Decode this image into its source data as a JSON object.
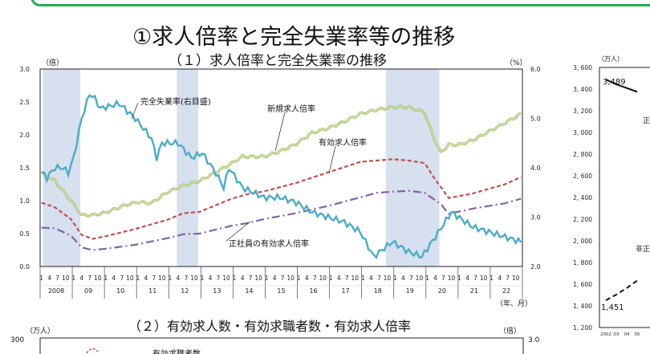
{
  "page_title": "①求人倍率と完全失業率等の推移",
  "chart_data": [
    {
      "type": "line",
      "title": "（１）求人倍率と完全失業率の推移",
      "left_unit": "（倍）",
      "right_unit": "（%）",
      "x_unit": "（年、月）",
      "ylim": [
        0,
        3.0
      ],
      "y_ticks": [
        "0.0",
        "0.5",
        "1.0",
        "1.5",
        "2.0",
        "2.5",
        "3.0"
      ],
      "y2lim": [
        2.0,
        6.0
      ],
      "y2_ticks": [
        "2.0",
        "3.0",
        "4.0",
        "5.0",
        "6.0"
      ],
      "month_ticks": [
        "1",
        "4",
        "7",
        "10"
      ],
      "years": [
        "2008",
        "09",
        "10",
        "11",
        "12",
        "13",
        "14",
        "15",
        "16",
        "17",
        "18",
        "19",
        "20",
        "21",
        "22"
      ],
      "grid": false,
      "recession_shading": [
        [
          "2008-02",
          "2009-03"
        ],
        [
          "2012-04",
          "2012-11"
        ],
        [
          "2018-10",
          "2020-05"
        ]
      ],
      "shade_color": "#d6e0ef",
      "series": [
        {
          "name": "新規求人倍率",
          "axis": "left",
          "color": "#9cbb59",
          "style": "double",
          "points": [
            [
              "2008-01",
              1.43
            ],
            [
              "2008-06",
              1.3
            ],
            [
              "2008-12",
              1.0
            ],
            [
              "2009-04",
              0.78
            ],
            [
              "2009-08",
              0.78
            ],
            [
              "2010-01",
              0.82
            ],
            [
              "2010-08",
              0.93
            ],
            [
              "2011-01",
              0.98
            ],
            [
              "2011-06",
              0.96
            ],
            [
              "2011-12",
              1.13
            ],
            [
              "2012-06",
              1.23
            ],
            [
              "2012-12",
              1.3
            ],
            [
              "2013-06",
              1.43
            ],
            [
              "2013-12",
              1.57
            ],
            [
              "2014-04",
              1.67
            ],
            [
              "2014-12",
              1.67
            ],
            [
              "2015-06",
              1.75
            ],
            [
              "2015-12",
              1.86
            ],
            [
              "2016-06",
              2.03
            ],
            [
              "2016-12",
              2.1
            ],
            [
              "2017-06",
              2.2
            ],
            [
              "2017-12",
              2.32
            ],
            [
              "2018-06",
              2.38
            ],
            [
              "2018-12",
              2.42
            ],
            [
              "2019-06",
              2.42
            ],
            [
              "2019-12",
              2.34
            ],
            [
              "2020-03",
              2.0
            ],
            [
              "2020-06",
              1.73
            ],
            [
              "2020-09",
              1.85
            ],
            [
              "2021-01",
              1.85
            ],
            [
              "2021-06",
              1.92
            ],
            [
              "2021-12",
              2.05
            ],
            [
              "2022-06",
              2.18
            ],
            [
              "2022-12",
              2.32
            ]
          ]
        },
        {
          "name": "有効求人倍率",
          "axis": "left",
          "color": "#c0504d",
          "style": "dash",
          "points": [
            [
              "2008-01",
              0.97
            ],
            [
              "2008-06",
              0.9
            ],
            [
              "2008-12",
              0.72
            ],
            [
              "2009-04",
              0.48
            ],
            [
              "2009-08",
              0.42
            ],
            [
              "2010-01",
              0.46
            ],
            [
              "2010-12",
              0.57
            ],
            [
              "2011-12",
              0.71
            ],
            [
              "2012-06",
              0.81
            ],
            [
              "2012-12",
              0.83
            ],
            [
              "2013-12",
              1.03
            ],
            [
              "2014-06",
              1.1
            ],
            [
              "2014-12",
              1.14
            ],
            [
              "2015-12",
              1.27
            ],
            [
              "2016-12",
              1.43
            ],
            [
              "2017-12",
              1.59
            ],
            [
              "2018-12",
              1.63
            ],
            [
              "2019-06",
              1.61
            ],
            [
              "2019-12",
              1.57
            ],
            [
              "2020-04",
              1.32
            ],
            [
              "2020-09",
              1.04
            ],
            [
              "2021-06",
              1.11
            ],
            [
              "2022-06",
              1.25
            ],
            [
              "2022-12",
              1.36
            ]
          ]
        },
        {
          "name": "正社員の有効求人倍率",
          "axis": "left",
          "color": "#8064a2",
          "style": "dashdot",
          "points": [
            [
              "2008-01",
              0.59
            ],
            [
              "2008-06",
              0.58
            ],
            [
              "2008-12",
              0.47
            ],
            [
              "2009-04",
              0.29
            ],
            [
              "2009-08",
              0.25
            ],
            [
              "2010-01",
              0.27
            ],
            [
              "2010-12",
              0.33
            ],
            [
              "2011-12",
              0.43
            ],
            [
              "2012-06",
              0.49
            ],
            [
              "2012-12",
              0.5
            ],
            [
              "2013-12",
              0.62
            ],
            [
              "2014-06",
              0.66
            ],
            [
              "2014-12",
              0.72
            ],
            [
              "2015-12",
              0.81
            ],
            [
              "2016-12",
              0.92
            ],
            [
              "2017-12",
              1.05
            ],
            [
              "2018-06",
              1.12
            ],
            [
              "2019-06",
              1.15
            ],
            [
              "2019-12",
              1.12
            ],
            [
              "2020-06",
              0.95
            ],
            [
              "2020-09",
              0.8
            ],
            [
              "2021-06",
              0.88
            ],
            [
              "2022-06",
              0.96
            ],
            [
              "2022-12",
              1.03
            ]
          ]
        },
        {
          "name": "完全失業率(右目盛)",
          "axis": "right",
          "color": "#4bacc6",
          "style": "solid",
          "points": [
            [
              "2008-01",
              3.9
            ],
            [
              "2008-03",
              3.8
            ],
            [
              "2008-06",
              4.0
            ],
            [
              "2008-09",
              4.0
            ],
            [
              "2008-11",
              3.9
            ],
            [
              "2009-01",
              4.2
            ],
            [
              "2009-04",
              5.0
            ],
            [
              "2009-07",
              5.5
            ],
            [
              "2009-09",
              5.4
            ],
            [
              "2009-11",
              5.2
            ],
            [
              "2010-06",
              5.3
            ],
            [
              "2010-12",
              5.0
            ],
            [
              "2011-06",
              4.6
            ],
            [
              "2011-08",
              4.2
            ],
            [
              "2011-10",
              4.5
            ],
            [
              "2012-04",
              4.5
            ],
            [
              "2012-09",
              4.2
            ],
            [
              "2013-01",
              4.3
            ],
            [
              "2013-06",
              3.9
            ],
            [
              "2013-09",
              3.6
            ],
            [
              "2013-11",
              4.0
            ],
            [
              "2014-04",
              3.6
            ],
            [
              "2014-12",
              3.4
            ],
            [
              "2015-06",
              3.4
            ],
            [
              "2015-12",
              3.3
            ],
            [
              "2016-06",
              3.1
            ],
            [
              "2016-12",
              3.0
            ],
            [
              "2017-06",
              2.9
            ],
            [
              "2017-12",
              2.7
            ],
            [
              "2018-05",
              2.2
            ],
            [
              "2018-12",
              2.5
            ],
            [
              "2019-06",
              2.3
            ],
            [
              "2019-11",
              2.2
            ],
            [
              "2020-04",
              2.6
            ],
            [
              "2020-10",
              3.1
            ],
            [
              "2021-06",
              2.8
            ],
            [
              "2021-12",
              2.7
            ],
            [
              "2022-06",
              2.6
            ],
            [
              "2022-12",
              2.5
            ]
          ]
        }
      ]
    },
    {
      "type": "line",
      "unit": "（万人）",
      "y_ticks": [
        "3,600",
        "3,400",
        "3,200",
        "3,000",
        "2,800",
        "2,600",
        "2,400",
        "2,200",
        "2,000",
        "1,800",
        "1,600",
        "1,400",
        "1,200"
      ],
      "x_ticks": [
        "2002",
        "03",
        "04",
        "05"
      ],
      "labels": [
        "3,489",
        "1,451",
        "正",
        "非正"
      ],
      "series": [
        {
          "style": "solid",
          "points": [
            [
              "2002",
              3489
            ],
            [
              "2003",
              3444
            ],
            [
              "2004",
              3410
            ],
            [
              "2005",
              3375
            ]
          ]
        },
        {
          "style": "dash",
          "points": [
            [
              "2002",
              1451
            ],
            [
              "2003",
              1504
            ],
            [
              "2004",
              1564
            ],
            [
              "2005",
              1633
            ]
          ]
        }
      ]
    },
    {
      "type": "line",
      "title": "（２）有効求人数・有効求職者数・有効求人倍率",
      "left_unit": "（万人）",
      "right_unit": "（倍）",
      "left_top": "300",
      "right_top": "3.0",
      "legend_label": "有効求職者数"
    }
  ]
}
